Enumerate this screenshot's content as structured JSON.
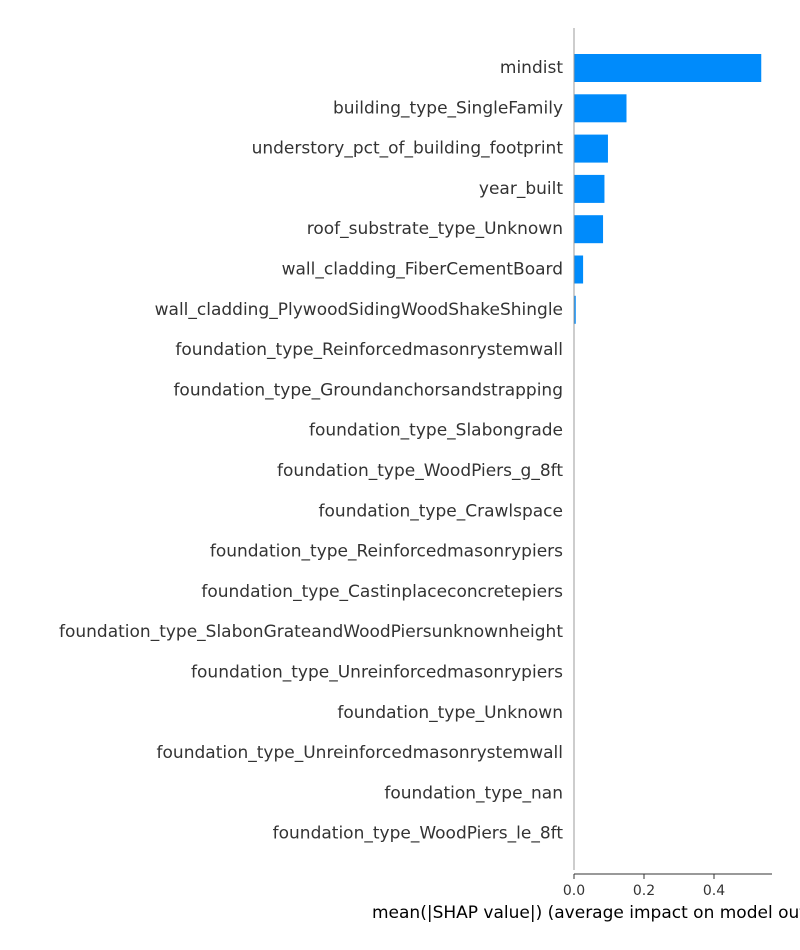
{
  "chart_data": {
    "type": "bar",
    "orientation": "horizontal",
    "categories": [
      "mindist",
      "building_type_SingleFamily",
      "understory_pct_of_building_footprint",
      "year_built",
      "roof_substrate_type_Unknown",
      "wall_cladding_FiberCementBoard",
      "wall_cladding_PlywoodSidingWoodShakeShingle",
      "foundation_type_Reinforcedmasonrystemwall",
      "foundation_type_Groundanchorsandstrapping",
      "foundation_type_Slabongrade",
      "foundation_type_WoodPiers_g_8ft",
      "foundation_type_Crawlspace",
      "foundation_type_Reinforcedmasonrypiers",
      "foundation_type_Castinplaceconcretepiers",
      "foundation_type_SlabonGrateandWoodPiersunknownheight",
      "foundation_type_Unreinforcedmasonrypiers",
      "foundation_type_Unknown",
      "foundation_type_Unreinforcedmasonrystemwall",
      "foundation_type_nan",
      "foundation_type_WoodPiers_le_8ft"
    ],
    "values": [
      0.535,
      0.15,
      0.097,
      0.087,
      0.083,
      0.026,
      0.005,
      0,
      0,
      0,
      0,
      0,
      0,
      0,
      0,
      0,
      0,
      0,
      0,
      0
    ],
    "xlabel": "mean(|SHAP value|) (average impact on model output magnitude)",
    "ylabel": "",
    "title": "",
    "xlim": [
      0,
      0.56
    ],
    "xticks": [
      0.0,
      0.2,
      0.4
    ],
    "xtick_labels": [
      "0.0",
      "0.2",
      "0.4"
    ],
    "grid": false,
    "bar_color": "#008bfb",
    "axis_color": "#9b9b9b"
  }
}
